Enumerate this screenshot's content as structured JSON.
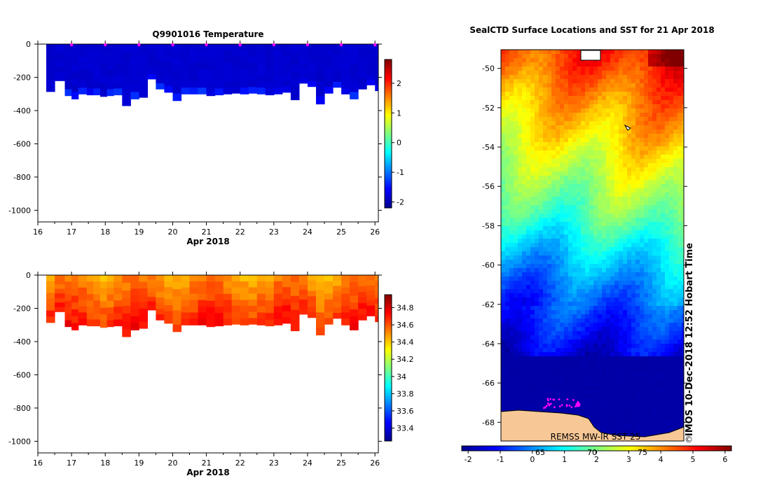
{
  "chart_data": [
    {
      "type": "heatmap",
      "title": "Q9901016  Temperature",
      "xlabel": "Apr 2018",
      "ylabel": "",
      "x_ticks": [
        "16",
        "17",
        "18",
        "19",
        "20",
        "21",
        "22",
        "23",
        "24",
        "25",
        "26"
      ],
      "xlim": [
        16,
        26.1
      ],
      "y_ticks": [
        "0",
        "-200",
        "-400",
        "-600",
        "-800",
        "-1000"
      ],
      "ylim": [
        -1070,
        0
      ],
      "profile_days": [
        16.25,
        16.5,
        16.8,
        17.0,
        17.2,
        17.45,
        17.65,
        17.85,
        18.05,
        18.25,
        18.5,
        18.75,
        19.0,
        19.25,
        19.5,
        19.75,
        20.0,
        20.25,
        20.5,
        20.75,
        21.0,
        21.25,
        21.5,
        21.75,
        22.0,
        22.25,
        22.5,
        22.75,
        23.0,
        23.25,
        23.5,
        23.75,
        24.0,
        24.25,
        24.5,
        24.75,
        25.0,
        25.25,
        25.5,
        25.75,
        26.0
      ],
      "profile_max_depth": [
        285,
        220,
        310,
        330,
        300,
        305,
        305,
        315,
        310,
        305,
        370,
        330,
        320,
        210,
        270,
        290,
        340,
        300,
        300,
        300,
        310,
        305,
        300,
        295,
        300,
        295,
        300,
        305,
        300,
        290,
        335,
        235,
        255,
        360,
        295,
        260,
        300,
        330,
        270,
        245,
        280
      ],
      "surface_markers": [
        17,
        18,
        19,
        20,
        21,
        22,
        23,
        24,
        25,
        26
      ],
      "colorbar_ticks": [
        "2",
        "1",
        "0",
        "-1",
        "-2"
      ],
      "colorbar_range": [
        -2.2,
        2.8
      ],
      "dominant_value": -1.85
    },
    {
      "type": "heatmap",
      "title": "",
      "xlabel": "Apr 2018",
      "ylabel": "",
      "x_ticks": [
        "16",
        "17",
        "18",
        "19",
        "20",
        "21",
        "22",
        "23",
        "24",
        "25",
        "26"
      ],
      "xlim": [
        16,
        26.1
      ],
      "y_ticks": [
        "0",
        "-200",
        "-400",
        "-600",
        "-800",
        "-1000"
      ],
      "ylim": [
        -1070,
        0
      ],
      "profile_max_depth": [
        285,
        220,
        310,
        330,
        300,
        305,
        305,
        315,
        310,
        305,
        370,
        330,
        320,
        210,
        270,
        290,
        340,
        300,
        300,
        300,
        310,
        305,
        300,
        295,
        300,
        295,
        300,
        305,
        300,
        290,
        335,
        235,
        255,
        360,
        295,
        260,
        300,
        330,
        270,
        245,
        280
      ],
      "colorbar_ticks": [
        "34.8",
        "34.6",
        "34.4",
        "34.2",
        "34",
        "33.8",
        "33.6",
        "33.4"
      ],
      "colorbar_range": [
        33.25,
        34.95
      ],
      "value_range_in_profiles": [
        34.35,
        34.75
      ]
    },
    {
      "type": "heatmap",
      "title": "SealCTD Surface Locations and SST for 21 Apr 2018",
      "y_ticks": [
        "-50",
        "-52",
        "-54",
        "-56",
        "-58",
        "-60",
        "-62",
        "-64",
        "-66",
        "-68"
      ],
      "ylim": [
        -68.95,
        -49.05
      ],
      "colorbar_ticks": [
        "-2",
        "-1",
        "0",
        "1",
        "2",
        "3",
        "4",
        "5",
        "6"
      ],
      "colorbar_range": [
        -2.2,
        6.2
      ],
      "colorbar_under_labels": [
        "65",
        "70",
        "75"
      ],
      "sst_by_latitude": [
        {
          "lat": -49.5,
          "sst": 4.8
        },
        {
          "lat": -51.5,
          "sst": 4.0
        },
        {
          "lat": -53.5,
          "sst": 3.3
        },
        {
          "lat": -55.5,
          "sst": 2.5
        },
        {
          "lat": -57.5,
          "sst": 1.7
        },
        {
          "lat": -59.5,
          "sst": 0.6
        },
        {
          "lat": -61.5,
          "sst": -0.3
        },
        {
          "lat": -63.5,
          "sst": -1.0
        },
        {
          "lat": -65.5,
          "sst": -1.8
        },
        {
          "lat": -67.5,
          "sst": -1.9
        }
      ],
      "source_label": "REMSS MW-IR SST 25",
      "side_label": "IMOS 10-Dec-2018 12:52 Hobart Time",
      "copyright_symbol": "©"
    }
  ],
  "colors": {
    "land": "#f7c896",
    "marker": "#ff00ff",
    "deep_blue": "#00007e"
  }
}
